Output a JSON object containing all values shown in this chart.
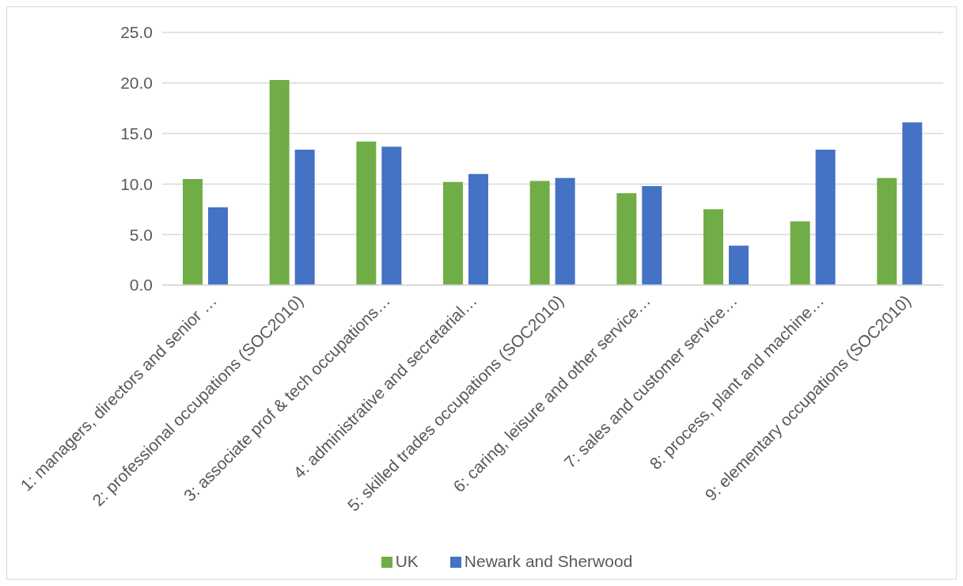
{
  "chart_data": {
    "type": "bar",
    "categories": [
      "1: managers, directors and senior …",
      "2: professional occupations (SOC2010)",
      "3: associate prof & tech occupations…",
      "4: administrative and secretarial…",
      "5: skilled trades occupations (SOC2010)",
      "6: caring, leisure and other service…",
      "7: sales and customer service…",
      "8: process, plant and machine…",
      "9: elementary occupations (SOC2010)"
    ],
    "series": [
      {
        "name": "UK",
        "color": "#70ad47",
        "values": [
          10.5,
          20.3,
          14.2,
          10.2,
          10.3,
          9.1,
          7.5,
          6.3,
          10.6
        ]
      },
      {
        "name": "Newark and Sherwood",
        "color": "#4472c4",
        "values": [
          7.7,
          13.4,
          13.7,
          11.0,
          10.6,
          9.8,
          3.9,
          13.4,
          16.1
        ]
      }
    ],
    "ylim": [
      0,
      25
    ],
    "yticks": [
      {
        "value": 0,
        "label": "0.0"
      },
      {
        "value": 5,
        "label": "5.0"
      },
      {
        "value": 10,
        "label": "10.0"
      },
      {
        "value": 15,
        "label": "15.0"
      },
      {
        "value": 20,
        "label": "20.0"
      },
      {
        "value": 25,
        "label": "25.0"
      }
    ],
    "grid": "y",
    "legend": "bottom"
  }
}
